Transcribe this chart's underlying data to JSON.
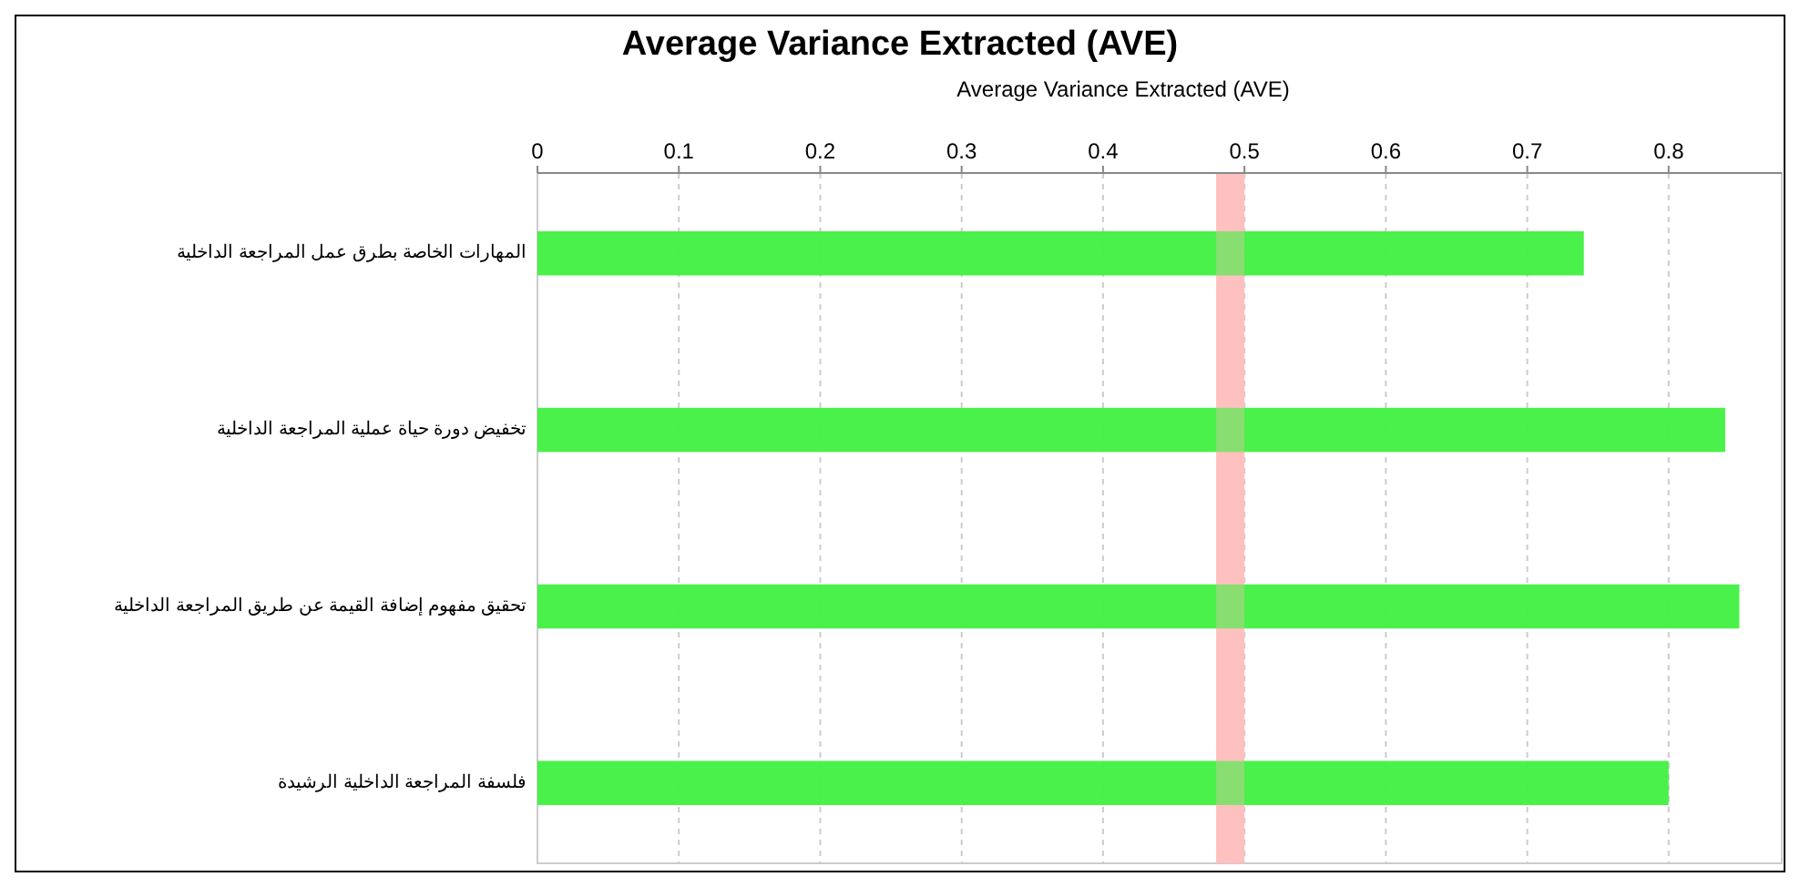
{
  "chart_data": {
    "type": "bar",
    "orientation": "horizontal",
    "title": "Average Variance Extracted (AVE)",
    "xlabel": "Average Variance Extracted (AVE)",
    "categories": [
      "المهارات الخاصة بطرق عمل المراجعة الداخلية",
      "تخفيض دورة حياة عملية المراجعة الداخلية",
      "تحقيق مفهوم إضافة القيمة عن طريق المراجعة الداخلية",
      "فلسفة المراجعة الداخلية الرشيدة"
    ],
    "values": [
      0.74,
      0.84,
      0.85,
      0.8
    ],
    "color": "#40f040",
    "xlim": [
      0,
      0.88
    ],
    "xticks": [
      0,
      0.1,
      0.2,
      0.3,
      0.4,
      0.5,
      0.6,
      0.7,
      0.8
    ],
    "grid": "x",
    "bands": [
      {
        "axis": "x",
        "from": 0.48,
        "to": 0.5,
        "color": "#ffc0c0"
      }
    ]
  }
}
